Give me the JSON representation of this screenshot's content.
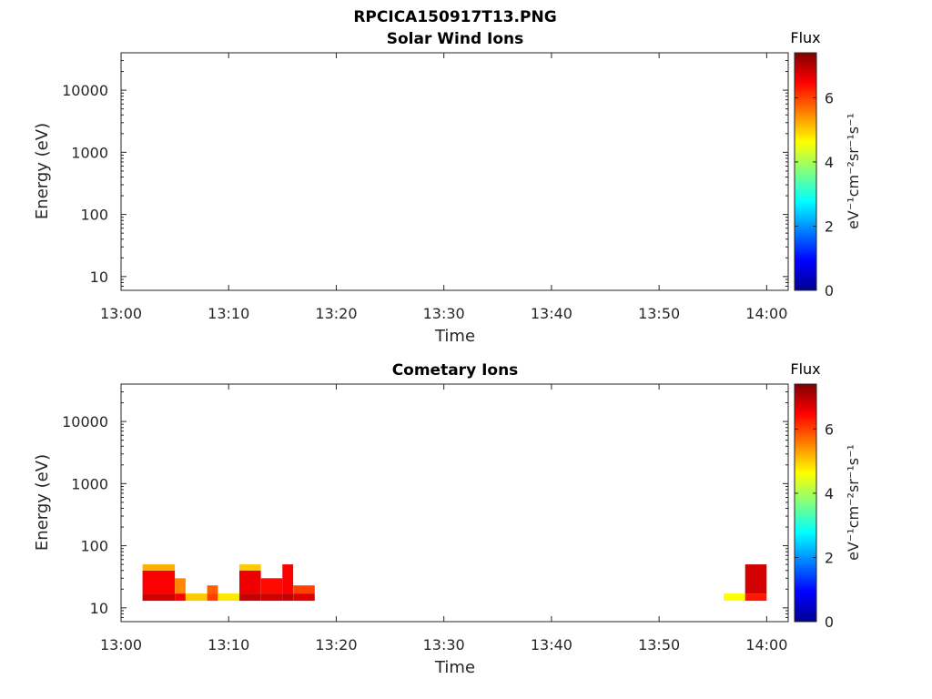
{
  "figure_title": "RPCICA150917T13.PNG",
  "chart_data": [
    {
      "type": "heatmap",
      "title": "Solar Wind Ions",
      "xlabel": "Time",
      "ylabel": "Energy (eV)",
      "y_scale": "log",
      "xlim": [
        "13:00",
        "14:02"
      ],
      "ylim": [
        6,
        40000
      ],
      "x_ticks": [
        "13:00",
        "13:10",
        "13:20",
        "13:30",
        "13:40",
        "13:50",
        "14:00"
      ],
      "y_ticks": [
        "10",
        "100",
        "1000",
        "10000"
      ],
      "colorbar": {
        "title": "Flux",
        "label": "eV⁻¹cm⁻²sr⁻¹s⁻¹",
        "range": [
          0,
          7.4
        ],
        "ticks": [
          "0",
          "2",
          "4",
          "6"
        ],
        "colormap": "jet"
      },
      "cells": []
    },
    {
      "type": "heatmap",
      "title": "Cometary Ions",
      "xlabel": "Time",
      "ylabel": "Energy (eV)",
      "y_scale": "log",
      "xlim": [
        "13:00",
        "14:02"
      ],
      "ylim": [
        6,
        40000
      ],
      "x_ticks": [
        "13:00",
        "13:10",
        "13:20",
        "13:30",
        "13:40",
        "13:50",
        "14:00"
      ],
      "y_ticks": [
        "10",
        "100",
        "1000",
        "10000"
      ],
      "colorbar": {
        "title": "Flux",
        "label": "eV⁻¹cm⁻²sr⁻¹s⁻¹",
        "range": [
          0,
          7.4
        ],
        "ticks": [
          "0",
          "2",
          "4",
          "6"
        ],
        "colormap": "jet"
      },
      "cells": [
        {
          "t0": "13:02",
          "t1": "13:05",
          "e0": 13,
          "e1": 17,
          "flux": 6.8
        },
        {
          "t0": "13:02",
          "t1": "13:05",
          "e0": 17,
          "e1": 40,
          "flux": 6.5
        },
        {
          "t0": "13:02",
          "t1": "13:05",
          "e0": 40,
          "e1": 50,
          "flux": 5.2
        },
        {
          "t0": "13:05",
          "t1": "13:06",
          "e0": 13,
          "e1": 17,
          "flux": 6.5
        },
        {
          "t0": "13:05",
          "t1": "13:06",
          "e0": 17,
          "e1": 30,
          "flux": 5.5
        },
        {
          "t0": "13:06",
          "t1": "13:08",
          "e0": 13,
          "e1": 17,
          "flux": 5.0
        },
        {
          "t0": "13:08",
          "t1": "13:09",
          "e0": 13,
          "e1": 17,
          "flux": 6.0
        },
        {
          "t0": "13:08",
          "t1": "13:09",
          "e0": 17,
          "e1": 23,
          "flux": 5.8
        },
        {
          "t0": "13:09",
          "t1": "13:11",
          "e0": 13,
          "e1": 17,
          "flux": 4.8
        },
        {
          "t0": "13:11",
          "t1": "13:13",
          "e0": 13,
          "e1": 17,
          "flux": 6.9
        },
        {
          "t0": "13:11",
          "t1": "13:13",
          "e0": 17,
          "e1": 40,
          "flux": 6.6
        },
        {
          "t0": "13:11",
          "t1": "13:13",
          "e0": 40,
          "e1": 50,
          "flux": 5.0
        },
        {
          "t0": "13:13",
          "t1": "13:15",
          "e0": 13,
          "e1": 17,
          "flux": 6.8
        },
        {
          "t0": "13:13",
          "t1": "13:15",
          "e0": 17,
          "e1": 30,
          "flux": 6.4
        },
        {
          "t0": "13:15",
          "t1": "13:16",
          "e0": 13,
          "e1": 17,
          "flux": 6.9
        },
        {
          "t0": "13:15",
          "t1": "13:16",
          "e0": 17,
          "e1": 50,
          "flux": 6.5
        },
        {
          "t0": "13:16",
          "t1": "13:18",
          "e0": 13,
          "e1": 17,
          "flux": 6.7
        },
        {
          "t0": "13:16",
          "t1": "13:18",
          "e0": 17,
          "e1": 23,
          "flux": 6.0
        },
        {
          "t0": "13:56",
          "t1": "13:58",
          "e0": 13,
          "e1": 17,
          "flux": 4.6
        },
        {
          "t0": "13:58",
          "t1": "14:00",
          "e0": 13,
          "e1": 17,
          "flux": 6.3
        },
        {
          "t0": "13:58",
          "t1": "14:00",
          "e0": 17,
          "e1": 50,
          "flux": 6.8
        }
      ]
    }
  ]
}
